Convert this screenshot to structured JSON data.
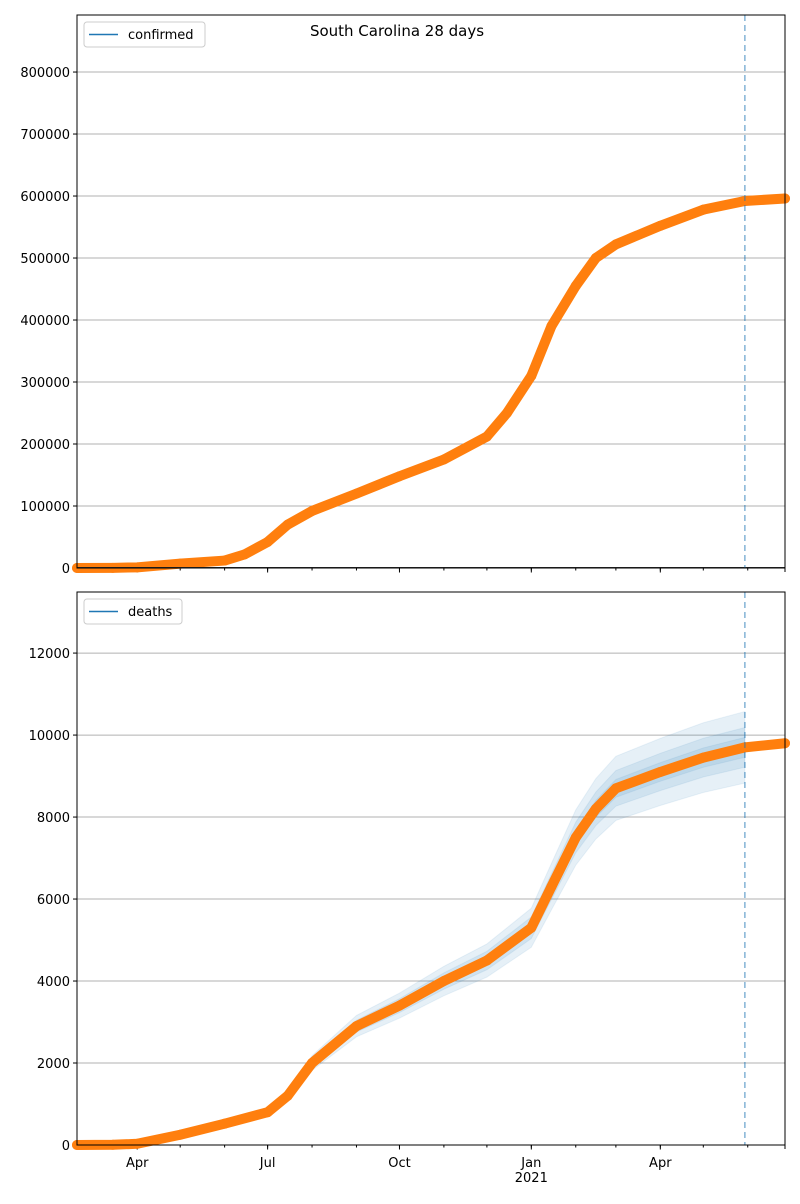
{
  "chart_data": [
    {
      "type": "line",
      "title": "South Carolina 28 days",
      "legend": {
        "label": "confirmed",
        "placement": "top-left"
      },
      "ylim": [
        0,
        892000
      ],
      "yticks": [
        0,
        100000,
        200000,
        300000,
        400000,
        500000,
        600000,
        700000,
        800000
      ],
      "grid": true,
      "xlim": [
        "2020-02-19",
        "2021-06-27"
      ],
      "forecast_start": "2021-05-30",
      "series": [
        {
          "name": "confirmed",
          "color": "#ff7f0e",
          "x": [
            "2020-02-19",
            "2020-03-15",
            "2020-04-01",
            "2020-05-01",
            "2020-06-01",
            "2020-06-15",
            "2020-07-01",
            "2020-07-15",
            "2020-08-01",
            "2020-09-01",
            "2020-10-01",
            "2020-11-01",
            "2020-12-01",
            "2020-12-15",
            "2021-01-01",
            "2021-01-15",
            "2021-02-01",
            "2021-02-15",
            "2021-03-01",
            "2021-04-01",
            "2021-05-01",
            "2021-05-30",
            "2021-06-27"
          ],
          "values": [
            0,
            300,
            1000,
            7000,
            12000,
            22000,
            42000,
            70000,
            92000,
            120000,
            148000,
            175000,
            212000,
            250000,
            310000,
            390000,
            455000,
            500000,
            522000,
            552000,
            578000,
            592000,
            596000
          ]
        }
      ]
    },
    {
      "type": "line",
      "legend": {
        "label": "deaths",
        "placement": "top-left"
      },
      "ylim": [
        0,
        13490
      ],
      "yticks": [
        0,
        2000,
        4000,
        6000,
        8000,
        10000,
        12000
      ],
      "grid": true,
      "xlim": [
        "2020-02-19",
        "2021-06-27"
      ],
      "xticks": [
        {
          "date": "2020-04-01",
          "label": "Apr"
        },
        {
          "date": "2020-07-01",
          "label": "Jul"
        },
        {
          "date": "2020-10-01",
          "label": "Oct"
        },
        {
          "date": "2021-01-01",
          "label": "Jan",
          "sublabel": "2021"
        },
        {
          "date": "2021-04-01",
          "label": "Apr"
        }
      ],
      "forecast_start": "2021-05-30",
      "band_color": "#1f77b4",
      "band_fractions": [
        0.09,
        0.05,
        0.025
      ],
      "band_start": "2020-07-01",
      "series": [
        {
          "name": "deaths",
          "color": "#ff7f0e",
          "x": [
            "2020-02-19",
            "2020-03-15",
            "2020-04-01",
            "2020-05-01",
            "2020-06-01",
            "2020-07-01",
            "2020-07-15",
            "2020-08-01",
            "2020-09-01",
            "2020-10-01",
            "2020-11-01",
            "2020-12-01",
            "2021-01-01",
            "2021-01-15",
            "2021-02-01",
            "2021-02-15",
            "2021-03-01",
            "2021-04-01",
            "2021-05-01",
            "2021-05-30",
            "2021-06-27"
          ],
          "values": [
            0,
            5,
            30,
            250,
            520,
            800,
            1200,
            2000,
            2900,
            3400,
            4000,
            4500,
            5300,
            6300,
            7500,
            8200,
            8700,
            9100,
            9450,
            9700,
            9800
          ]
        }
      ]
    }
  ]
}
